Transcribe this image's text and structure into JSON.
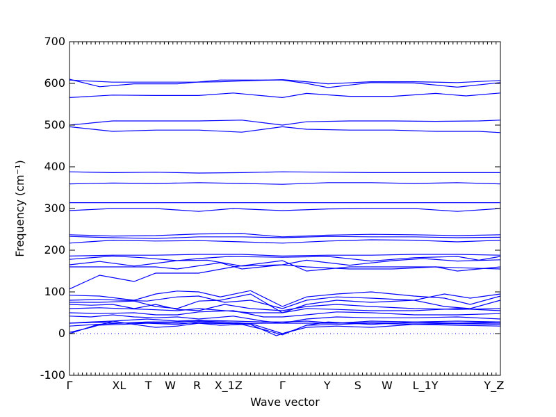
{
  "chart_data": {
    "type": "line",
    "title": "",
    "xlabel": "Wave vector",
    "ylabel": "Frequency (cm⁻¹)",
    "ylim": [
      -100,
      700
    ],
    "yticks": [
      -100,
      0,
      100,
      200,
      300,
      400,
      500,
      600,
      700
    ],
    "x_range": [
      0,
      1
    ],
    "grid": false,
    "x_tick_labels": [
      {
        "label": "Γ",
        "x": 0.0
      },
      {
        "label": "XL",
        "x": 0.115
      },
      {
        "label": "T",
        "x": 0.183
      },
      {
        "label": "W",
        "x": 0.234
      },
      {
        "label": "R",
        "x": 0.296
      },
      {
        "label": "X_1Z",
        "x": 0.369
      },
      {
        "label": "Γ",
        "x": 0.494
      },
      {
        "label": "Y",
        "x": 0.598
      },
      {
        "label": "S",
        "x": 0.669
      },
      {
        "label": "W",
        "x": 0.737
      },
      {
        "label": "L_1Y",
        "x": 0.826
      },
      {
        "label": "Y_Z",
        "x": 0.985
      },
      {
        "label": "Z",
        "x": 1.0
      }
    ],
    "zero_line": 0,
    "series": [
      {
        "x": [
          0,
          0.1,
          0.2,
          0.3,
          0.35,
          0.4,
          0.494,
          0.55,
          0.6,
          0.7,
          0.8,
          0.9,
          1.0
        ],
        "values": [
          608,
          603,
          603,
          603,
          604,
          606,
          609,
          604,
          599,
          604,
          604,
          602,
          607
        ]
      },
      {
        "x": [
          0,
          0.07,
          0.15,
          0.25,
          0.35,
          0.4,
          0.494,
          0.55,
          0.6,
          0.7,
          0.8,
          0.9,
          1.0
        ],
        "values": [
          610,
          592,
          599,
          599,
          608,
          608,
          608,
          600,
          590,
          602,
          601,
          591,
          602
        ]
      },
      {
        "x": [
          0,
          0.1,
          0.2,
          0.3,
          0.38,
          0.494,
          0.55,
          0.65,
          0.75,
          0.85,
          0.92,
          1.0
        ],
        "values": [
          566,
          572,
          571,
          571,
          577,
          566,
          576,
          569,
          569,
          576,
          570,
          577
        ]
      },
      {
        "x": [
          0,
          0.1,
          0.2,
          0.3,
          0.4,
          0.494,
          0.55,
          0.65,
          0.75,
          0.85,
          0.95,
          1.0
        ],
        "values": [
          500,
          510,
          510,
          510,
          512,
          500,
          508,
          510,
          510,
          509,
          510,
          512
        ]
      },
      {
        "x": [
          0,
          0.1,
          0.2,
          0.3,
          0.4,
          0.494,
          0.55,
          0.65,
          0.75,
          0.85,
          0.95,
          1.0
        ],
        "values": [
          496,
          485,
          488,
          488,
          483,
          496,
          490,
          488,
          488,
          485,
          485,
          482
        ]
      },
      {
        "x": [
          0,
          0.1,
          0.2,
          0.3,
          0.4,
          0.494,
          0.6,
          0.7,
          0.8,
          0.9,
          1.0
        ],
        "values": [
          388,
          386,
          387,
          385,
          386,
          388,
          387,
          386,
          386,
          386,
          386
        ]
      },
      {
        "x": [
          0,
          0.1,
          0.2,
          0.3,
          0.4,
          0.494,
          0.6,
          0.7,
          0.8,
          0.9,
          1.0
        ],
        "values": [
          359,
          361,
          360,
          362,
          360,
          358,
          362,
          362,
          360,
          362,
          359
        ]
      },
      {
        "x": [
          0,
          0.2,
          0.4,
          0.6,
          0.8,
          1.0
        ],
        "values": [
          314,
          314,
          314,
          314,
          314,
          314
        ]
      },
      {
        "x": [
          0,
          0.1,
          0.2,
          0.3,
          0.38,
          0.494,
          0.6,
          0.7,
          0.8,
          0.9,
          1.0
        ],
        "values": [
          295,
          300,
          300,
          293,
          300,
          295,
          299,
          300,
          300,
          293,
          300
        ]
      },
      {
        "x": [
          0,
          0.1,
          0.2,
          0.3,
          0.4,
          0.494,
          0.6,
          0.7,
          0.8,
          0.9,
          1.0
        ],
        "values": [
          237,
          234,
          235,
          239,
          240,
          232,
          236,
          238,
          237,
          235,
          237
        ]
      },
      {
        "x": [
          0,
          0.1,
          0.2,
          0.3,
          0.4,
          0.494,
          0.6,
          0.7,
          0.8,
          0.9,
          1.0
        ],
        "values": [
          233,
          230,
          228,
          232,
          232,
          230,
          233,
          232,
          232,
          230,
          231
        ]
      },
      {
        "x": [
          0,
          0.1,
          0.2,
          0.3,
          0.4,
          0.494,
          0.6,
          0.7,
          0.8,
          0.9,
          1.0
        ],
        "values": [
          217,
          224,
          222,
          223,
          220,
          217,
          222,
          225,
          224,
          220,
          224
        ]
      },
      {
        "x": [
          0,
          0.1,
          0.2,
          0.3,
          0.4,
          0.494,
          0.6,
          0.7,
          0.8,
          0.9,
          1.0
        ],
        "values": [
          186,
          188,
          188,
          190,
          190,
          186,
          188,
          188,
          190,
          190,
          188
        ]
      },
      {
        "x": [
          0,
          0.1,
          0.17,
          0.25,
          0.3,
          0.37,
          0.494,
          0.6,
          0.7,
          0.8,
          0.9,
          0.95,
          1.0
        ],
        "values": [
          178,
          186,
          182,
          175,
          180,
          185,
          183,
          185,
          174,
          182,
          185,
          176,
          185
        ]
      },
      {
        "x": [
          0,
          0.07,
          0.15,
          0.25,
          0.32,
          0.4,
          0.494,
          0.55,
          0.65,
          0.75,
          0.82,
          0.9,
          1.0
        ],
        "values": [
          165,
          173,
          162,
          175,
          176,
          162,
          165,
          176,
          164,
          175,
          180,
          174,
          177
        ]
      },
      {
        "x": [
          0,
          0.1,
          0.2,
          0.25,
          0.35,
          0.4,
          0.494,
          0.55,
          0.65,
          0.75,
          0.85,
          0.9,
          1.0
        ],
        "values": [
          160,
          160,
          160,
          155,
          170,
          155,
          165,
          160,
          155,
          155,
          160,
          158,
          155
        ]
      },
      {
        "x": [
          0,
          0.07,
          0.15,
          0.2,
          0.3,
          0.38,
          0.494,
          0.55,
          0.65,
          0.75,
          0.85,
          0.9,
          1.0
        ],
        "values": [
          107,
          140,
          125,
          145,
          145,
          160,
          175,
          150,
          160,
          160,
          160,
          150,
          160
        ]
      },
      {
        "x": [
          0,
          0.07,
          0.15,
          0.2,
          0.25,
          0.3,
          0.35,
          0.42,
          0.494,
          0.55,
          0.62,
          0.7,
          0.8,
          0.87,
          0.93,
          1.0
        ],
        "values": [
          92,
          90,
          80,
          95,
          102,
          100,
          88,
          103,
          65,
          88,
          95,
          100,
          90,
          85,
          70,
          90
        ]
      },
      {
        "x": [
          0,
          0.07,
          0.12,
          0.18,
          0.25,
          0.3,
          0.36,
          0.42,
          0.494,
          0.55,
          0.62,
          0.7,
          0.8,
          0.87,
          0.93,
          1.0
        ],
        "values": [
          80,
          82,
          80,
          78,
          88,
          90,
          75,
          80,
          60,
          80,
          88,
          85,
          80,
          65,
          60,
          80
        ]
      },
      {
        "x": [
          0,
          0.07,
          0.15,
          0.2,
          0.25,
          0.3,
          0.35,
          0.42,
          0.494,
          0.55,
          0.62,
          0.7,
          0.8,
          0.87,
          0.93,
          1.0
        ],
        "values": [
          75,
          75,
          78,
          65,
          60,
          78,
          80,
          95,
          50,
          70,
          80,
          75,
          80,
          95,
          85,
          95
        ]
      },
      {
        "x": [
          0,
          0.05,
          0.1,
          0.15,
          0.2,
          0.25,
          0.3,
          0.36,
          0.42,
          0.494,
          0.55,
          0.62,
          0.7,
          0.8,
          0.9,
          1.0
        ],
        "values": [
          70,
          68,
          70,
          60,
          70,
          58,
          55,
          70,
          60,
          55,
          65,
          70,
          65,
          60,
          58,
          60
        ]
      },
      {
        "x": [
          0,
          0.07,
          0.12,
          0.18,
          0.25,
          0.3,
          0.36,
          0.42,
          0.494,
          0.55,
          0.62,
          0.7,
          0.8,
          0.9,
          1.0
        ],
        "values": [
          60,
          62,
          60,
          58,
          55,
          60,
          55,
          50,
          50,
          60,
          58,
          55,
          55,
          60,
          55
        ]
      },
      {
        "x": [
          0,
          0.07,
          0.15,
          0.2,
          0.25,
          0.3,
          0.38,
          0.45,
          0.494,
          0.55,
          0.62,
          0.7,
          0.8,
          0.9,
          1.0
        ],
        "values": [
          50,
          48,
          50,
          45,
          45,
          52,
          55,
          40,
          40,
          45,
          52,
          50,
          45,
          45,
          48
        ]
      },
      {
        "x": [
          0,
          0.05,
          0.1,
          0.15,
          0.2,
          0.25,
          0.3,
          0.38,
          0.45,
          0.494,
          0.55,
          0.62,
          0.7,
          0.8,
          0.9,
          1.0
        ],
        "values": [
          42,
          40,
          45,
          40,
          38,
          40,
          35,
          42,
          30,
          25,
          35,
          40,
          38,
          38,
          40,
          35
        ]
      },
      {
        "x": [
          0,
          0.05,
          0.1,
          0.18,
          0.25,
          0.3,
          0.38,
          0.45,
          0.494,
          0.55,
          0.62,
          0.7,
          0.8,
          0.9,
          1.0
        ],
        "values": [
          25,
          28,
          30,
          35,
          30,
          32,
          30,
          28,
          28,
          30,
          25,
          30,
          28,
          30,
          28
        ]
      },
      {
        "x": [
          0,
          0.06,
          0.12,
          0.18,
          0.25,
          0.3,
          0.38,
          0.45,
          0.494,
          0.55,
          0.62,
          0.7,
          0.8,
          0.9,
          1.0
        ],
        "values": [
          25,
          27,
          25,
          26,
          25,
          25,
          24,
          25,
          25,
          25,
          25,
          26,
          25,
          25,
          25
        ]
      },
      {
        "x": [
          0,
          0.06,
          0.12,
          0.18,
          0.25,
          0.3,
          0.36,
          0.42,
          0.48,
          0.494,
          0.52,
          0.55,
          0.62,
          0.7,
          0.8,
          0.9,
          1.0
        ],
        "values": [
          0,
          20,
          22,
          25,
          22,
          28,
          25,
          22,
          -5,
          0,
          8,
          20,
          22,
          25,
          22,
          24,
          22
        ]
      },
      {
        "x": [
          0,
          0.05,
          0.1,
          0.15,
          0.2,
          0.25,
          0.3,
          0.35,
          0.4,
          0.45,
          0.494,
          0.55,
          0.6,
          0.7,
          0.8,
          0.9,
          1.0
        ],
        "values": [
          3,
          15,
          30,
          22,
          15,
          18,
          25,
          20,
          22,
          10,
          -3,
          20,
          28,
          22,
          28,
          25,
          28
        ]
      },
      {
        "x": [
          0,
          0.06,
          0.12,
          0.18,
          0.25,
          0.3,
          0.36,
          0.42,
          0.494,
          0.55,
          0.62,
          0.7,
          0.8,
          0.9,
          1.0
        ],
        "values": [
          18,
          22,
          25,
          28,
          28,
          30,
          28,
          24,
          0,
          15,
          18,
          15,
          22,
          20,
          18
        ]
      }
    ]
  }
}
